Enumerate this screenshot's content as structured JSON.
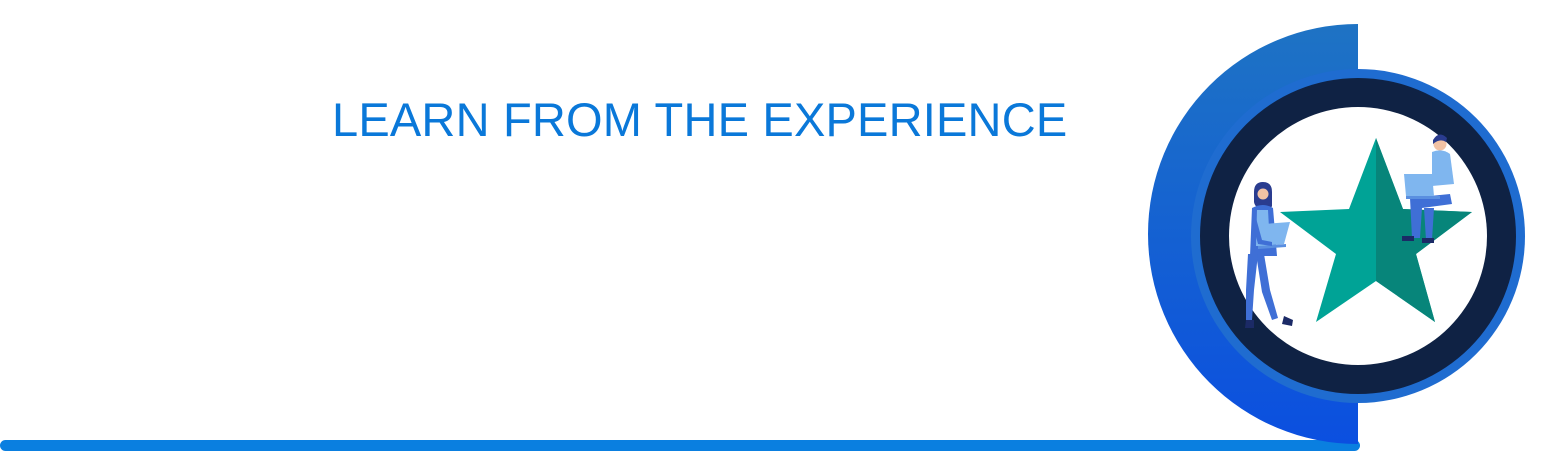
{
  "banner": {
    "heading": "LEARN FROM THE EXPERIENCE"
  },
  "illustration": {
    "icon": "star-with-people-illustration",
    "subjects": [
      "woman-with-laptop-icon",
      "man-with-laptop-icon",
      "star-icon"
    ]
  },
  "colors": {
    "heading": "#0a78d9",
    "rule": "#0a7fe0",
    "swoosh_top": "#1e73c4",
    "swoosh_bottom": "#0b4fe0",
    "ring_outer": "#1f6cd0",
    "ring_dark": "#0f2244",
    "star_light": "#00a396",
    "star_dark": "#07857a",
    "figure_blue": "#3f6fd6",
    "figure_light": "#7fb6ef",
    "background": "#ffffff"
  }
}
